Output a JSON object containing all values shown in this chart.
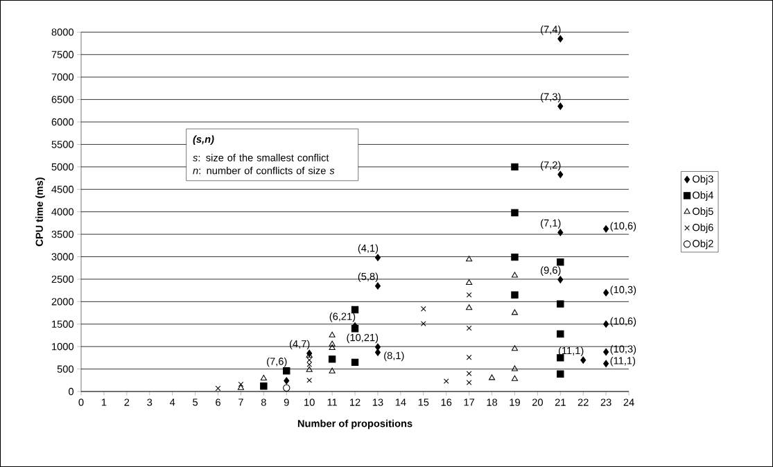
{
  "chart_data": {
    "type": "scatter",
    "xlabel": "Number of propositions",
    "ylabel": "CPU time (ms)",
    "xlim": [
      0,
      24
    ],
    "xticks": [
      0,
      1,
      2,
      3,
      4,
      5,
      6,
      7,
      8,
      9,
      10,
      11,
      12,
      13,
      14,
      15,
      16,
      17,
      18,
      19,
      20,
      21,
      22,
      23,
      24
    ],
    "ylim": [
      0,
      8000
    ],
    "yticks": [
      0,
      500,
      1000,
      1500,
      2000,
      2500,
      3000,
      3500,
      4000,
      4500,
      5000,
      5500,
      6000,
      6500,
      7000,
      7500,
      8000
    ],
    "grid": "y",
    "legend": "right",
    "series": [
      {
        "name": "Obj3",
        "color": "#000000",
        "marker": "diamond",
        "x": [
          9,
          10,
          12,
          13,
          13,
          13,
          13,
          21,
          21,
          21,
          21,
          21,
          22,
          23,
          23,
          23,
          23,
          23
        ],
        "values": [
          240,
          850,
          1460,
          2980,
          2350,
          990,
          870,
          7850,
          6350,
          4830,
          3540,
          2490,
          700,
          3620,
          2200,
          1500,
          880,
          620
        ]
      },
      {
        "name": "Obj4",
        "color": "#000000",
        "marker": "square",
        "x": [
          8,
          9,
          11,
          12,
          12,
          12,
          19,
          19,
          19,
          19,
          21,
          21,
          21,
          21,
          21
        ],
        "values": [
          120,
          460,
          720,
          1820,
          1400,
          650,
          5000,
          3980,
          2990,
          2150,
          2880,
          1950,
          1280,
          750,
          390
        ]
      },
      {
        "name": "Obj5",
        "color": "#000000",
        "marker": "triangle",
        "x": [
          7,
          8,
          10,
          10,
          11,
          11,
          11,
          11,
          17,
          17,
          17,
          18,
          19,
          19,
          19,
          19,
          19
        ],
        "values": [
          80,
          290,
          800,
          480,
          1250,
          1050,
          970,
          450,
          2940,
          2420,
          1860,
          300,
          2580,
          1750,
          950,
          500,
          280
        ]
      },
      {
        "name": "Obj6",
        "color": "#000000",
        "marker": "cross",
        "x": [
          6,
          7,
          10,
          10,
          10,
          15,
          15,
          16,
          17,
          17,
          17,
          17,
          17
        ],
        "values": [
          70,
          160,
          700,
          600,
          250,
          1840,
          1510,
          230,
          2150,
          1410,
          760,
          400,
          200
        ]
      },
      {
        "name": "Obj2",
        "color": "#000000",
        "marker": "circle",
        "x": [
          9
        ],
        "values": [
          80
        ]
      }
    ],
    "annotations": [
      "(s,n)",
      "*s*: size of the smallest conflict",
      "*n*: number of conflicts of size *s*",
      {
        "text": "(7,6)",
        "x": 9,
        "y": 460
      },
      {
        "text": "(4,7)",
        "x": 10,
        "y": 850
      },
      {
        "text": "(6,21)",
        "x": 12,
        "y": 1460
      },
      {
        "text": "(4,1)",
        "x": 13,
        "y": 2980
      },
      {
        "text": "(5,8)",
        "x": 13,
        "y": 2350
      },
      {
        "text": "(10,21)",
        "x": 13,
        "y": 990
      },
      {
        "text": "(8,1)",
        "x": 13,
        "y": 870
      },
      {
        "text": "(7,4)",
        "x": 21,
        "y": 7850
      },
      {
        "text": "(7,3)",
        "x": 21,
        "y": 6350
      },
      {
        "text": "(7,2)",
        "x": 21,
        "y": 4830
      },
      {
        "text": "(7,1)",
        "x": 21,
        "y": 3540
      },
      {
        "text": "(9,6)",
        "x": 21,
        "y": 2490
      },
      {
        "text": "(11,1)",
        "x": 22,
        "y": 700
      },
      {
        "text": "(10,6)",
        "x": 23,
        "y": 3620
      },
      {
        "text": "(10,3)",
        "x": 23,
        "y": 2200
      },
      {
        "text": "(10,6)",
        "x": 23,
        "y": 1500
      },
      {
        "text": "(10,3)",
        "x": 23,
        "y": 880
      },
      {
        "text": "(11,1)",
        "x": 23,
        "y": 620
      }
    ]
  }
}
